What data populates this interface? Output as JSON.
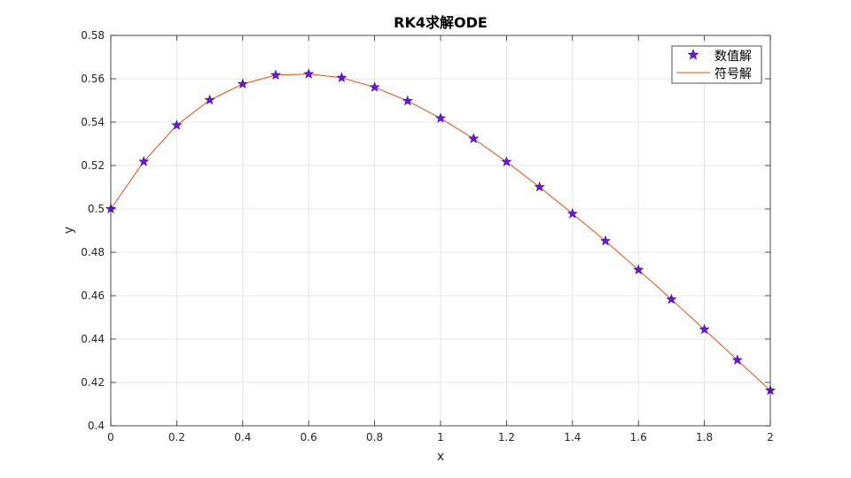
{
  "chart_data": {
    "type": "line",
    "title": "RK4求解ODE",
    "xlabel": "x",
    "ylabel": "y",
    "xlim": [
      0,
      2
    ],
    "ylim": [
      0.4,
      0.58
    ],
    "xticks": [
      0,
      0.2,
      0.4,
      0.6,
      0.8,
      1,
      1.2,
      1.4,
      1.6,
      1.8,
      2
    ],
    "xtick_labels": [
      "0",
      "0.2",
      "0.4",
      "0.6",
      "0.8",
      "1",
      "1.2",
      "1.4",
      "1.6",
      "1.8",
      "2"
    ],
    "yticks": [
      0.4,
      0.42,
      0.44,
      0.46,
      0.48,
      0.5,
      0.52,
      0.54,
      0.56,
      0.58
    ],
    "ytick_labels": [
      "0.4",
      "0.42",
      "0.44",
      "0.46",
      "0.48",
      "0.5",
      "0.52",
      "0.54",
      "0.56",
      "0.58"
    ],
    "grid": true,
    "legend_position": "top-right",
    "series": [
      {
        "name": "数值解",
        "style": "markers",
        "marker": "pentagram",
        "marker_face_color": "#7b0fd6",
        "marker_edge_color": "#1a1aa8",
        "x": [
          0,
          0.1,
          0.2,
          0.3,
          0.4,
          0.5,
          0.6,
          0.7,
          0.8,
          0.9,
          1.0,
          1.1,
          1.2,
          1.3,
          1.4,
          1.5,
          1.6,
          1.7,
          1.8,
          1.9,
          2.0
        ],
        "y": [
          0.5,
          0.5218,
          0.5386,
          0.5502,
          0.5576,
          0.5617,
          0.5622,
          0.5605,
          0.5561,
          0.5498,
          0.5418,
          0.5324,
          0.5217,
          0.5101,
          0.4978,
          0.4852,
          0.4719,
          0.4583,
          0.4444,
          0.4303,
          0.4163
        ]
      },
      {
        "name": "符号解",
        "style": "line",
        "color": "#d95319",
        "x": [
          0,
          0.1,
          0.2,
          0.3,
          0.4,
          0.5,
          0.6,
          0.7,
          0.8,
          0.9,
          1.0,
          1.1,
          1.2,
          1.3,
          1.4,
          1.5,
          1.6,
          1.7,
          1.8,
          1.9,
          2.0
        ],
        "y": [
          0.5,
          0.5218,
          0.5386,
          0.5502,
          0.5576,
          0.5617,
          0.5622,
          0.5605,
          0.5561,
          0.5498,
          0.5418,
          0.5324,
          0.5217,
          0.5101,
          0.4978,
          0.4852,
          0.4719,
          0.4583,
          0.4444,
          0.4303,
          0.4163
        ]
      }
    ]
  }
}
